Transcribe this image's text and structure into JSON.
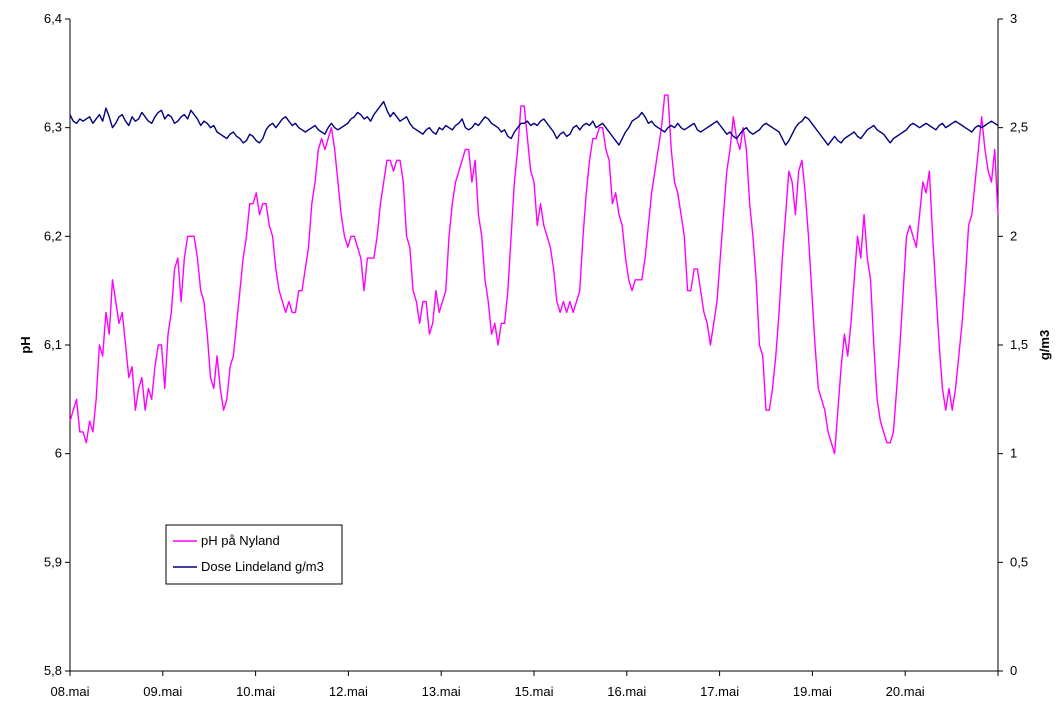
{
  "colors": {
    "ph_series": "#ff00ff",
    "dose_series": "#000080",
    "axis": "#000000",
    "background": "#ffffff"
  },
  "chart_data": {
    "type": "line",
    "title": "",
    "xlabel": "",
    "ylabel": "pH",
    "y2label": "g/m3",
    "ylim": [
      5.8,
      6.4
    ],
    "y2lim": [
      0,
      3
    ],
    "yticks": [
      "5,8",
      "5,9",
      "6",
      "6,1",
      "6,2",
      "6,3",
      "6,4"
    ],
    "y2ticks": [
      "0",
      "0,5",
      "1",
      "1,5",
      "2",
      "2,5",
      "3"
    ],
    "x_tick_labels": [
      "08.mai",
      "09.mai",
      "10.mai",
      "12.mai",
      "13.mai",
      "15.mai",
      "16.mai",
      "17.mai",
      "19.mai",
      "20.mai"
    ],
    "legend_position": "bottom-left",
    "grid": false,
    "series": [
      {
        "name": "pH på Nyland",
        "axis": "left",
        "color": "#ff00ff",
        "values": [
          6.03,
          6.04,
          6.05,
          6.02,
          6.02,
          6.01,
          6.03,
          6.02,
          6.05,
          6.1,
          6.09,
          6.13,
          6.11,
          6.16,
          6.14,
          6.12,
          6.13,
          6.1,
          6.07,
          6.08,
          6.04,
          6.06,
          6.07,
          6.04,
          6.06,
          6.05,
          6.08,
          6.1,
          6.1,
          6.06,
          6.11,
          6.13,
          6.17,
          6.18,
          6.14,
          6.18,
          6.2,
          6.2,
          6.2,
          6.18,
          6.15,
          6.14,
          6.11,
          6.07,
          6.06,
          6.09,
          6.06,
          6.04,
          6.05,
          6.08,
          6.09,
          6.12,
          6.15,
          6.18,
          6.2,
          6.23,
          6.23,
          6.24,
          6.22,
          6.23,
          6.23,
          6.21,
          6.2,
          6.17,
          6.15,
          6.14,
          6.13,
          6.14,
          6.13,
          6.13,
          6.15,
          6.15,
          6.17,
          6.19,
          6.23,
          6.25,
          6.28,
          6.29,
          6.28,
          6.29,
          6.3,
          6.28,
          6.25,
          6.22,
          6.2,
          6.19,
          6.2,
          6.2,
          6.19,
          6.18,
          6.15,
          6.18,
          6.18,
          6.18,
          6.2,
          6.23,
          6.25,
          6.27,
          6.27,
          6.26,
          6.27,
          6.27,
          6.25,
          6.2,
          6.19,
          6.15,
          6.14,
          6.12,
          6.14,
          6.14,
          6.11,
          6.12,
          6.15,
          6.13,
          6.14,
          6.15,
          6.2,
          6.23,
          6.25,
          6.26,
          6.27,
          6.28,
          6.28,
          6.25,
          6.27,
          6.22,
          6.2,
          6.16,
          6.14,
          6.11,
          6.12,
          6.1,
          6.12,
          6.12,
          6.15,
          6.2,
          6.25,
          6.28,
          6.32,
          6.32,
          6.29,
          6.26,
          6.25,
          6.21,
          6.23,
          6.21,
          6.2,
          6.19,
          6.17,
          6.14,
          6.13,
          6.14,
          6.13,
          6.14,
          6.13,
          6.14,
          6.15,
          6.2,
          6.24,
          6.27,
          6.29,
          6.29,
          6.3,
          6.3,
          6.28,
          6.27,
          6.23,
          6.24,
          6.22,
          6.21,
          6.18,
          6.16,
          6.15,
          6.16,
          6.16,
          6.16,
          6.18,
          6.21,
          6.24,
          6.26,
          6.28,
          6.3,
          6.33,
          6.33,
          6.28,
          6.25,
          6.24,
          6.22,
          6.2,
          6.15,
          6.15,
          6.17,
          6.17,
          6.15,
          6.13,
          6.12,
          6.1,
          6.12,
          6.14,
          6.18,
          6.22,
          6.26,
          6.28,
          6.31,
          6.29,
          6.28,
          6.3,
          6.28,
          6.23,
          6.2,
          6.16,
          6.1,
          6.09,
          6.04,
          6.04,
          6.06,
          6.09,
          6.13,
          6.18,
          6.22,
          6.26,
          6.25,
          6.22,
          6.26,
          6.27,
          6.24,
          6.2,
          6.15,
          6.1,
          6.06,
          6.05,
          6.04,
          6.02,
          6.01,
          6.0,
          6.04,
          6.08,
          6.11,
          6.09,
          6.12,
          6.16,
          6.2,
          6.18,
          6.22,
          6.18,
          6.16,
          6.1,
          6.05,
          6.03,
          6.02,
          6.01,
          6.01,
          6.02,
          6.06,
          6.1,
          6.15,
          6.2,
          6.21,
          6.2,
          6.19,
          6.22,
          6.25,
          6.24,
          6.26,
          6.2,
          6.15,
          6.1,
          6.06,
          6.04,
          6.06,
          6.04,
          6.06,
          6.09,
          6.12,
          6.16,
          6.21,
          6.22,
          6.25,
          6.28,
          6.31,
          6.28,
          6.26,
          6.25,
          6.28,
          6.22
        ]
      },
      {
        "name": "Dose Lindeland g/m3",
        "axis": "right",
        "color": "#000080",
        "values": [
          2.56,
          2.53,
          2.52,
          2.54,
          2.53,
          2.54,
          2.55,
          2.52,
          2.54,
          2.56,
          2.53,
          2.59,
          2.55,
          2.5,
          2.52,
          2.55,
          2.56,
          2.53,
          2.51,
          2.55,
          2.53,
          2.54,
          2.57,
          2.55,
          2.53,
          2.52,
          2.55,
          2.57,
          2.58,
          2.54,
          2.56,
          2.55,
          2.52,
          2.53,
          2.55,
          2.56,
          2.54,
          2.58,
          2.56,
          2.54,
          2.51,
          2.53,
          2.52,
          2.5,
          2.51,
          2.48,
          2.47,
          2.46,
          2.45,
          2.47,
          2.48,
          2.46,
          2.45,
          2.43,
          2.44,
          2.47,
          2.46,
          2.44,
          2.43,
          2.45,
          2.49,
          2.51,
          2.52,
          2.5,
          2.52,
          2.54,
          2.55,
          2.53,
          2.51,
          2.52,
          2.5,
          2.49,
          2.48,
          2.49,
          2.5,
          2.51,
          2.49,
          2.48,
          2.47,
          2.5,
          2.52,
          2.5,
          2.49,
          2.5,
          2.51,
          2.52,
          2.54,
          2.55,
          2.57,
          2.56,
          2.54,
          2.55,
          2.53,
          2.56,
          2.58,
          2.6,
          2.62,
          2.58,
          2.55,
          2.57,
          2.55,
          2.53,
          2.54,
          2.55,
          2.52,
          2.5,
          2.49,
          2.48,
          2.47,
          2.49,
          2.5,
          2.48,
          2.47,
          2.5,
          2.49,
          2.51,
          2.5,
          2.49,
          2.51,
          2.52,
          2.54,
          2.5,
          2.49,
          2.5,
          2.52,
          2.51,
          2.53,
          2.55,
          2.54,
          2.52,
          2.51,
          2.5,
          2.48,
          2.49,
          2.46,
          2.45,
          2.48,
          2.5,
          2.52,
          2.52,
          2.53,
          2.51,
          2.52,
          2.51,
          2.53,
          2.54,
          2.52,
          2.5,
          2.48,
          2.45,
          2.47,
          2.48,
          2.46,
          2.47,
          2.5,
          2.51,
          2.49,
          2.51,
          2.52,
          2.51,
          2.53,
          2.5,
          2.51,
          2.52,
          2.5,
          2.48,
          2.46,
          2.44,
          2.42,
          2.45,
          2.48,
          2.5,
          2.53,
          2.54,
          2.55,
          2.57,
          2.55,
          2.52,
          2.53,
          2.51,
          2.5,
          2.49,
          2.48,
          2.5,
          2.51,
          2.5,
          2.52,
          2.5,
          2.49,
          2.5,
          2.51,
          2.52,
          2.49,
          2.48,
          2.49,
          2.5,
          2.51,
          2.52,
          2.53,
          2.51,
          2.49,
          2.47,
          2.48,
          2.46,
          2.45,
          2.47,
          2.49,
          2.5,
          2.48,
          2.47,
          2.48,
          2.49,
          2.51,
          2.52,
          2.51,
          2.5,
          2.49,
          2.48,
          2.45,
          2.42,
          2.44,
          2.47,
          2.5,
          2.52,
          2.53,
          2.55,
          2.54,
          2.52,
          2.5,
          2.48,
          2.46,
          2.44,
          2.42,
          2.44,
          2.46,
          2.44,
          2.43,
          2.45,
          2.46,
          2.47,
          2.48,
          2.46,
          2.45,
          2.47,
          2.49,
          2.5,
          2.51,
          2.49,
          2.48,
          2.47,
          2.45,
          2.43,
          2.45,
          2.46,
          2.47,
          2.48,
          2.49,
          2.51,
          2.52,
          2.51,
          2.5,
          2.51,
          2.52,
          2.51,
          2.5,
          2.49,
          2.51,
          2.52,
          2.5,
          2.51,
          2.52,
          2.53,
          2.52,
          2.51,
          2.5,
          2.49,
          2.48,
          2.5,
          2.51,
          2.5,
          2.51,
          2.52,
          2.53,
          2.52,
          2.51
        ]
      }
    ]
  }
}
